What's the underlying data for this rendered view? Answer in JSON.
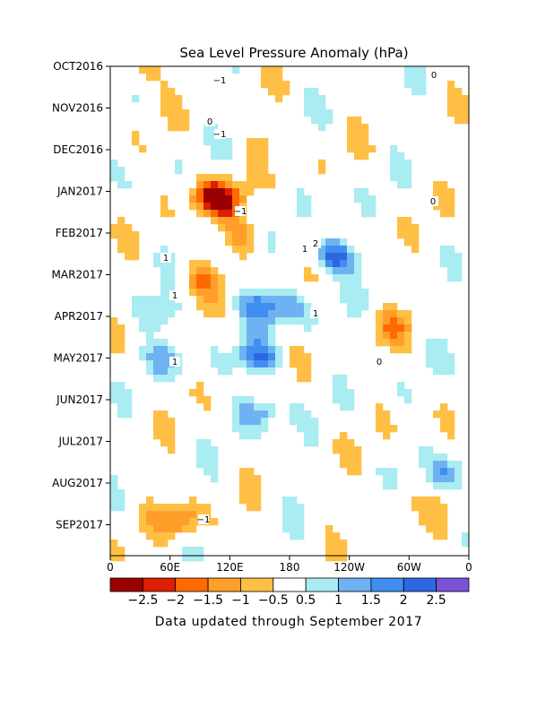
{
  "chart_data": {
    "type": "heatmap",
    "title": "Sea Level Pressure Anomaly (hPa)",
    "footnote": "Data updated through September 2017",
    "y_ticks": [
      "OCT2016",
      "NOV2016",
      "DEC2016",
      "JAN2017",
      "FEB2017",
      "MAR2017",
      "APR2017",
      "MAY2017",
      "JUN2017",
      "JUL2017",
      "AUG2017",
      "SEP2017"
    ],
    "x_ticks": [
      "0",
      "60E",
      "120E",
      "180",
      "120W",
      "60W",
      "0"
    ],
    "colorbar": {
      "colors": [
        "#9b0000",
        "#dd1e00",
        "#ff6a00",
        "#ff9f2a",
        "#ffbf45",
        "#ffffff",
        "#a9ecf2",
        "#6fb2f2",
        "#3f8ff0",
        "#2d68e2",
        "#7a52d8"
      ],
      "labels": [
        "−2.5",
        "−2",
        "−1.5",
        "−1",
        "−0.5",
        "0.5",
        "1",
        "1.5",
        "2",
        "2.5"
      ]
    },
    "contour_labels": [
      "−1",
      "−1",
      "−1",
      "0",
      "1",
      "2",
      "1",
      "1",
      "1",
      "1",
      "0",
      "0",
      "−1",
      "0"
    ],
    "features": [
      {
        "lon": 28,
        "month": 0.15,
        "value": -1.0
      },
      {
        "lon": 165,
        "month": 1.7,
        "value": -0.8
      },
      {
        "lon": 95,
        "month": 3.1,
        "value": -1.5
      },
      {
        "lon": 112,
        "month": 3.2,
        "value": -2.0
      },
      {
        "lon": 135,
        "month": 4.05,
        "value": -1.2
      },
      {
        "lon": 225,
        "month": 4.55,
        "value": 2.5
      },
      {
        "lon": 90,
        "month": 5.1,
        "value": -1.3
      },
      {
        "lon": 150,
        "month": 5.7,
        "value": 1.6
      },
      {
        "lon": 50,
        "month": 5.9,
        "value": 1.2
      },
      {
        "lon": 180,
        "month": 5.9,
        "value": 1.2
      },
      {
        "lon": 150,
        "month": 7.0,
        "value": 1.8
      },
      {
        "lon": 60,
        "month": 7.0,
        "value": 1.0
      },
      {
        "lon": 280,
        "month": 6.3,
        "value": -0.9
      },
      {
        "lon": 150,
        "month": 8.3,
        "value": 1.5
      },
      {
        "lon": 70,
        "month": 10.9,
        "value": -1.6
      },
      {
        "lon": 290,
        "month": 10.5,
        "value": -0.9
      },
      {
        "lon": 340,
        "month": 9.8,
        "value": 1.4
      }
    ]
  }
}
